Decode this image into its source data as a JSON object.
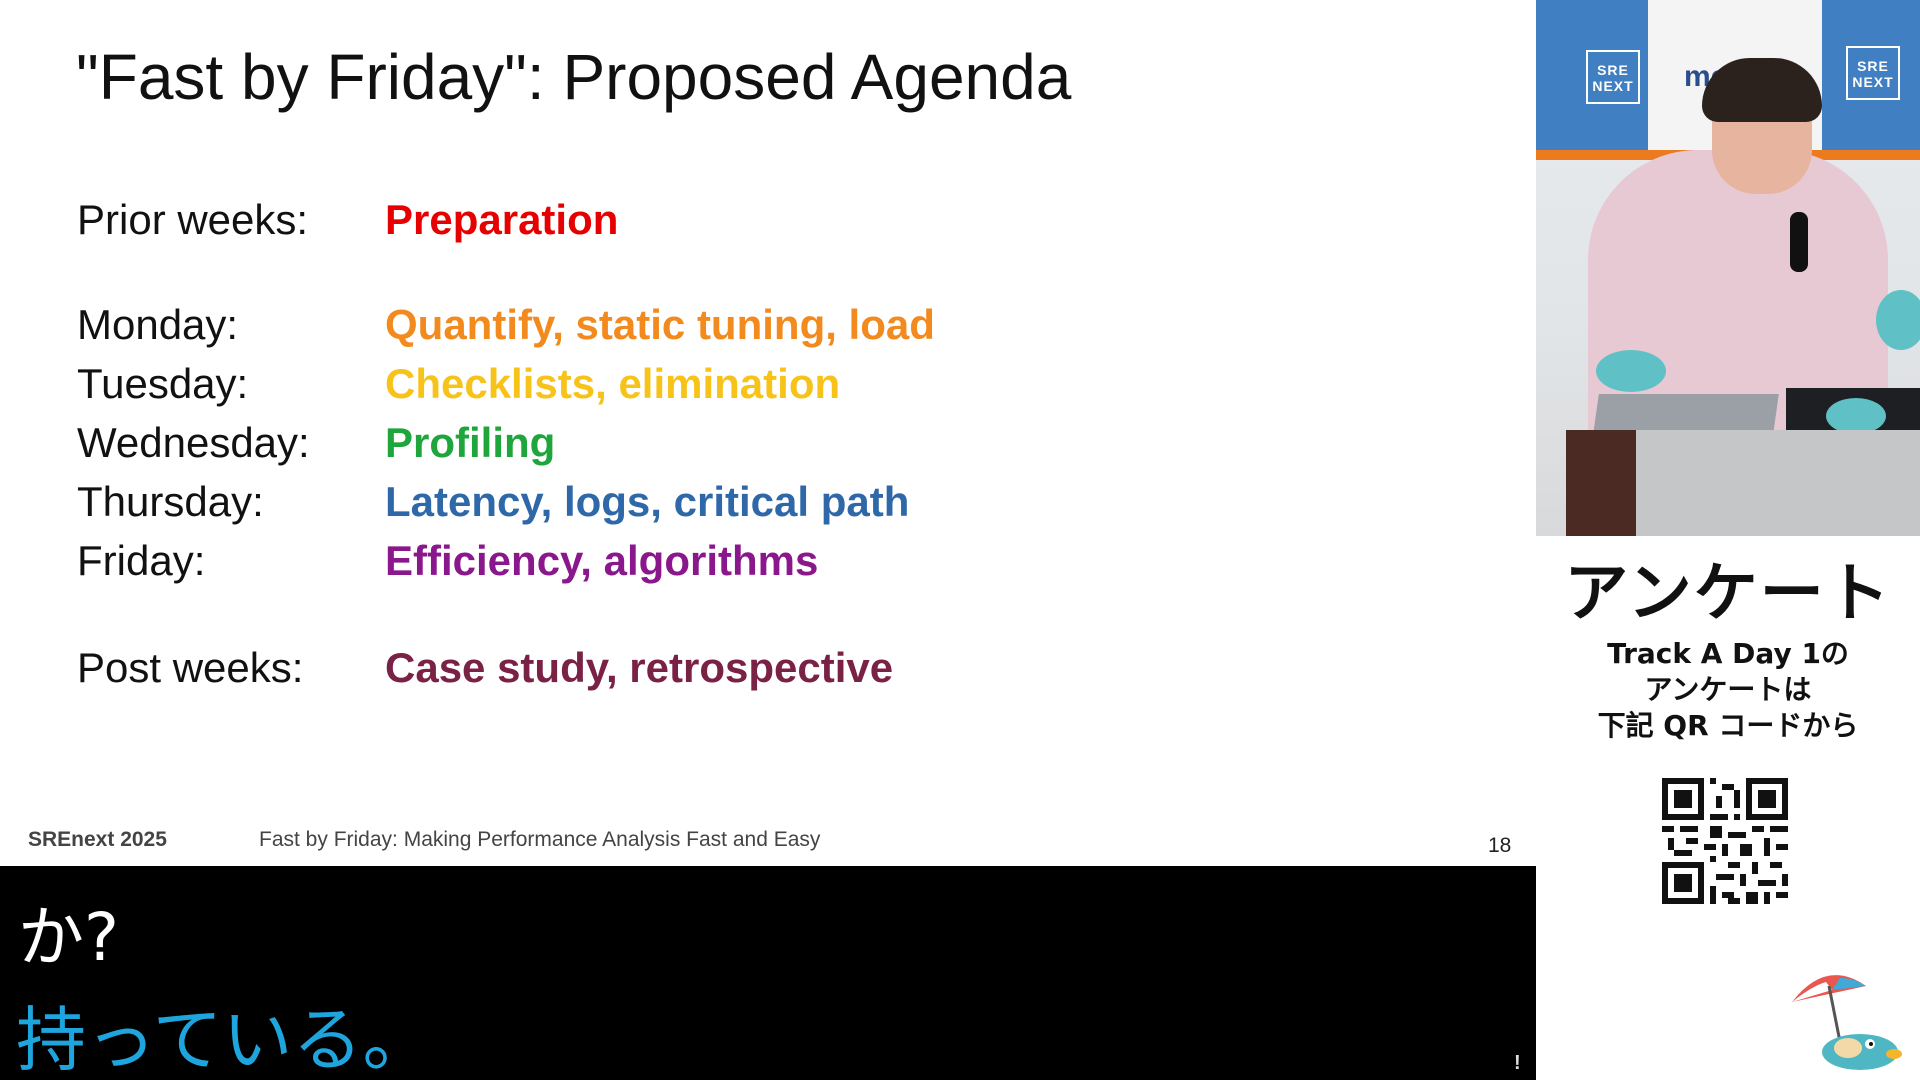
{
  "slide": {
    "title": "\"Fast by Friday\": Proposed Agenda",
    "agenda": [
      {
        "day": "Prior weeks:",
        "topic": "Preparation",
        "color": "#e60000"
      },
      {
        "day": "Monday:",
        "topic": "Quantify, static tuning, load",
        "color": "#f28a1e"
      },
      {
        "day": "Tuesday:",
        "topic": "Checklists, elimination",
        "color": "#f7c319"
      },
      {
        "day": "Wednesday:",
        "topic": "Profiling",
        "color": "#1ea53c"
      },
      {
        "day": "Thursday:",
        "topic": "Latency, logs, critical path",
        "color": "#2f68a8"
      },
      {
        "day": "Friday:",
        "topic": "Efficiency, algorithms",
        "color": "#8a178c"
      },
      {
        "day": "Post weeks:",
        "topic": "Case study, retrospective",
        "color": "#7a2146"
      }
    ],
    "footer": {
      "event": "SREnext 2025",
      "talk_title": "Fast by Friday: Making Performance Analysis Fast and Easy",
      "page_number": "18"
    }
  },
  "subtitles": {
    "line1": "か?",
    "line2": "持っている。",
    "line2_color": "#1fa5dd"
  },
  "camera": {
    "logo_left": "SRE NEXT",
    "logo_right": "SRE NEXT",
    "sponsor": "me"
  },
  "survey": {
    "title": "アンケート",
    "line1": "Track A Day 1の",
    "line2": "アンケートは",
    "line3": "下記 QR コードから"
  }
}
